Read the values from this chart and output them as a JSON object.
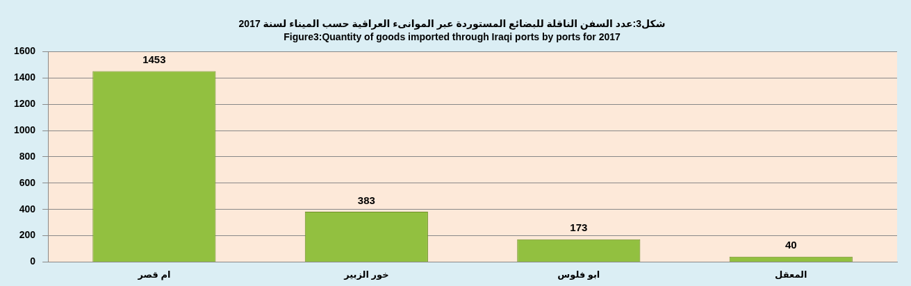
{
  "chart_data": {
    "type": "bar",
    "title": "شكل3:عدد السفن الناقلة للبضائع المستوردة عبر الموانىء العراقية حسب الميناء لسنة 2017",
    "subtitle": "Figure3:Quantity of goods imported through Iraqi ports by ports for 2017",
    "categories": [
      "ام قصر",
      "خور الزبير",
      "ابو فلوس",
      "المعقل"
    ],
    "values": [
      1453,
      383,
      173,
      40
    ],
    "color": "#92c040",
    "ylim": [
      0,
      1600
    ],
    "yticks": [
      0,
      200,
      400,
      600,
      800,
      1000,
      1200,
      1400,
      1600
    ],
    "grid": "y",
    "data_labels": true,
    "legend": false
  }
}
